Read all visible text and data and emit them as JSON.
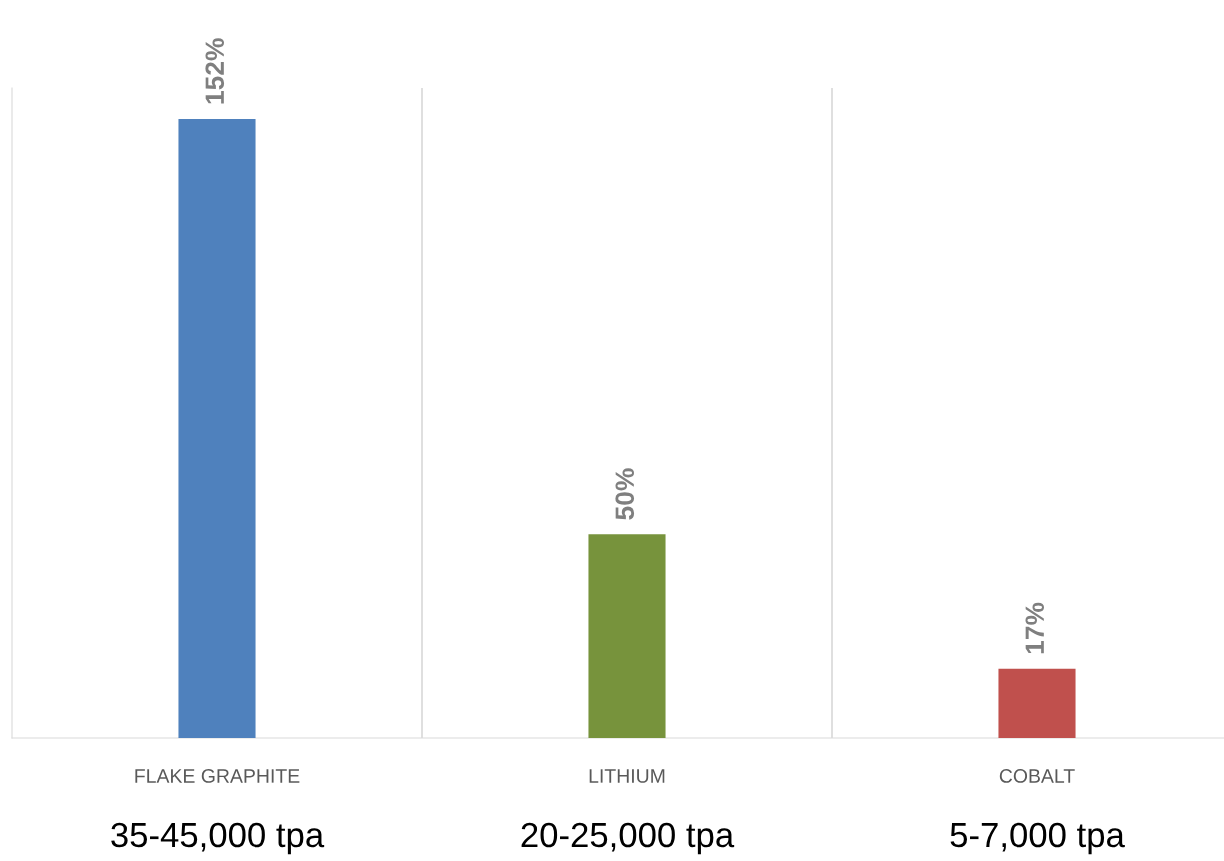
{
  "chart_data": {
    "type": "bar",
    "categories": [
      "FLAKE GRAPHITE",
      "LITHIUM",
      "COBALT"
    ],
    "values": [
      152,
      50,
      17
    ],
    "colors": [
      "#4f81bd",
      "#77933c",
      "#c0504d"
    ],
    "value_labels": [
      "152%",
      "50%",
      "17%"
    ],
    "grid": "x",
    "annotations": [
      "35-45,000 tpa",
      "20-25,000 tpa",
      "5-7,000 tpa"
    ]
  }
}
